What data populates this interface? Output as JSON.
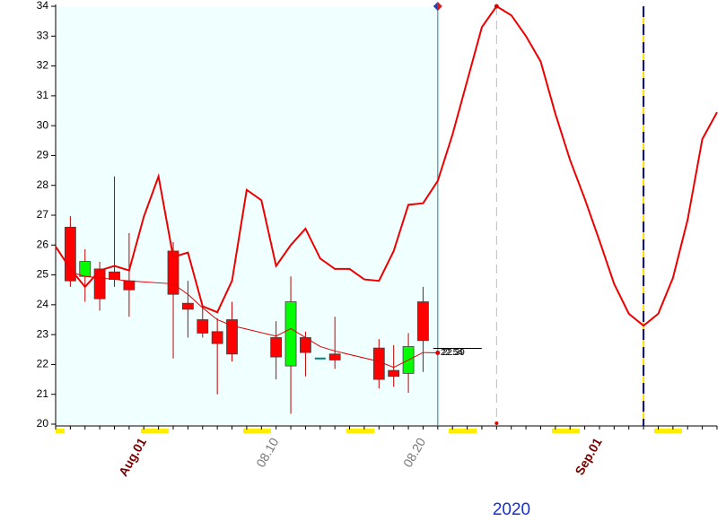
{
  "chart_data": {
    "type": "candlestick",
    "xlabel": "2020",
    "categories": [
      null,
      null,
      null,
      null,
      null,
      null,
      "Aug.01",
      null,
      null,
      null,
      null,
      null,
      null,
      null,
      null,
      "08.10",
      null,
      null,
      null,
      null,
      null,
      null,
      null,
      null,
      null,
      "08.20",
      null,
      null,
      null,
      null,
      null,
      null,
      null,
      null,
      null,
      null,
      null,
      "Sep.01",
      null,
      null,
      null,
      null,
      null,
      null,
      null,
      null
    ],
    "ylim": [
      20,
      34
    ],
    "yticks": [
      20,
      21,
      22,
      23,
      24,
      25,
      26,
      27,
      28,
      29,
      30,
      31,
      32,
      33,
      34
    ],
    "up_color": "#ff0000",
    "down_color": "#00ff00",
    "flat_color": "#008080",
    "candles": {
      "open": [
        null,
        24.8,
        25.45,
        24.2,
        24.85,
        24.5,
        null,
        null,
        24.35,
        23.85,
        23.05,
        22.7,
        22.35,
        null,
        null,
        22.25,
        24.1,
        22.4,
        22.2,
        22.15,
        null,
        null,
        21.5,
        21.6,
        22.6,
        22.8,
        null,
        null,
        null,
        null,
        null,
        null,
        null,
        null,
        null,
        null,
        null,
        null,
        null,
        null,
        null,
        null,
        null,
        null,
        null,
        null
      ],
      "high": [
        null,
        26.97,
        25.86,
        25.44,
        28.3,
        26.4,
        null,
        null,
        26.1,
        24.8,
        24.0,
        23.55,
        24.1,
        null,
        null,
        23.45,
        24.95,
        23.1,
        22.2,
        23.6,
        null,
        null,
        22.85,
        22.65,
        23.05,
        24.6,
        null,
        null,
        null,
        null,
        null,
        null,
        null,
        null,
        null,
        null,
        null,
        null,
        null,
        null,
        null,
        null,
        null,
        null,
        null,
        null
      ],
      "low": [
        null,
        24.6,
        24.1,
        23.8,
        24.6,
        23.6,
        null,
        null,
        22.2,
        22.9,
        22.9,
        21.0,
        22.1,
        null,
        null,
        21.5,
        20.35,
        21.6,
        22.2,
        21.85,
        null,
        null,
        21.2,
        21.25,
        21.05,
        21.75,
        null,
        null,
        null,
        null,
        null,
        null,
        null,
        null,
        null,
        null,
        null,
        null,
        null,
        null,
        null,
        null,
        null,
        null,
        null,
        null
      ],
      "close": [
        null,
        26.6,
        24.95,
        25.2,
        25.1,
        24.8,
        null,
        null,
        25.8,
        24.05,
        23.5,
        23.1,
        23.5,
        null,
        null,
        22.9,
        21.95,
        22.9,
        22.2,
        22.35,
        null,
        null,
        22.55,
        21.8,
        21.7,
        24.1,
        null,
        null,
        null,
        null,
        null,
        null,
        null,
        null,
        null,
        null,
        null,
        null,
        null,
        null,
        null,
        null,
        null,
        null,
        null,
        null
      ]
    },
    "series": [
      {
        "color": "#e00000",
        "values": [
          null,
          25.1,
          24.95,
          24.9,
          24.85,
          24.8,
          null,
          null,
          24.7,
          24.35,
          23.9,
          23.5,
          23.3,
          null,
          null,
          22.95,
          23.2,
          22.9,
          22.6,
          22.45,
          null,
          null,
          22.1,
          21.9,
          22.15,
          22.4,
          22.39,
          null,
          null,
          null,
          null,
          null,
          null,
          null,
          null,
          null,
          null,
          null,
          null,
          null,
          null,
          null,
          null,
          null,
          null,
          null
        ]
      },
      {
        "color": "#ee0000",
        "values": [
          25.95,
          25.2,
          24.6,
          25.15,
          25.3,
          25.15,
          26.95,
          28.3,
          25.6,
          25.75,
          23.95,
          23.75,
          24.8,
          27.85,
          27.5,
          25.3,
          26,
          26.55,
          25.55,
          25.2,
          25.2,
          24.85,
          24.8,
          25.8,
          27.35,
          27.4,
          28.15,
          29.7,
          31.5,
          33.3,
          34,
          33.7,
          33,
          32.15,
          30.4,
          28.85,
          27.55,
          26.15,
          24.7,
          23.7,
          23.3,
          23.7,
          24.9,
          26.85,
          29.55,
          30.45
        ]
      }
    ],
    "price_line": {
      "value": 22.54
    }
  }
}
